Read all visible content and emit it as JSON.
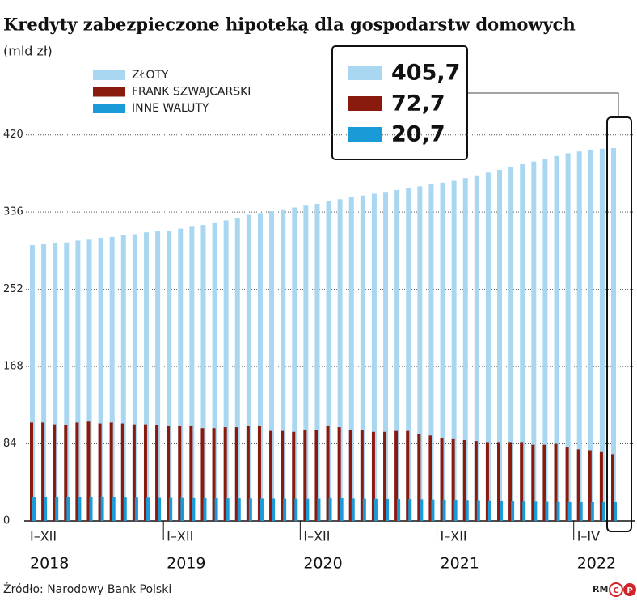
{
  "chart_data": {
    "type": "bar",
    "title": "Kredyty zabezpieczone hipoteką dla gospodarstw domowych",
    "subtitle": "(mld zł)",
    "categories": [
      null,
      null,
      null,
      null,
      null,
      null,
      null,
      null,
      null,
      null,
      null,
      null,
      null,
      null,
      null,
      null,
      null,
      null,
      null,
      null,
      null,
      null,
      null,
      null,
      null,
      null,
      null,
      null,
      null,
      null,
      null,
      null,
      null,
      null,
      null,
      null,
      null,
      null,
      null,
      null,
      null,
      null,
      null,
      null,
      null,
      null,
      null,
      null,
      null,
      null,
      null,
      null
    ],
    "x_groups": [
      {
        "label": "I–XII",
        "year": "2018"
      },
      {
        "label": "I–XII",
        "year": "2019"
      },
      {
        "label": "I–XII",
        "year": "2020"
      },
      {
        "label": "I–XII",
        "year": "2021"
      },
      {
        "label": "I–IV",
        "year": "2022"
      }
    ],
    "series": [
      {
        "name": "ZŁOTY",
        "color": "#a9d7f1",
        "values": [
          300,
          301,
          302,
          303,
          305,
          306,
          308,
          309,
          311,
          312,
          314,
          315,
          316,
          318,
          320,
          322,
          324,
          327,
          330,
          333,
          335,
          337,
          339,
          341,
          343,
          345,
          348,
          350,
          352,
          354,
          356,
          358,
          360,
          362,
          364,
          366,
          368,
          370,
          373,
          376,
          379,
          382,
          385,
          388,
          391,
          394,
          397,
          400,
          402,
          404,
          405,
          405.7
        ]
      },
      {
        "name": "FRANK SZWAJCARSKI",
        "color": "#8b1a0e",
        "values": [
          107,
          107,
          105,
          104,
          107,
          108,
          106,
          107,
          106,
          105,
          105,
          104,
          103,
          103,
          103,
          101,
          101,
          102,
          102,
          103,
          103,
          98,
          98,
          97,
          99,
          99,
          103,
          102,
          99,
          99,
          97,
          97,
          98,
          98,
          95,
          93,
          90,
          89,
          88,
          87,
          85,
          85,
          85,
          85,
          83,
          83,
          84,
          80,
          78,
          77,
          75,
          72.7
        ]
      },
      {
        "name": "INNE WALUTY",
        "color": "#1a9bd7",
        "values": [
          25.5,
          25.6,
          25.7,
          25.8,
          25.9,
          25.8,
          25.6,
          25.5,
          25.4,
          25.3,
          25.2,
          25.1,
          25.0,
          24.9,
          24.8,
          24.7,
          24.6,
          24.5,
          24.5,
          24.4,
          24.3,
          24.2,
          24.1,
          24.0,
          24.0,
          24.2,
          24.8,
          24.6,
          24.3,
          24.1,
          23.9,
          23.8,
          23.7,
          23.6,
          23.4,
          23.2,
          23.0,
          22.8,
          22.6,
          22.4,
          22.2,
          22.0,
          21.9,
          21.8,
          21.7,
          21.5,
          21.3,
          21.1,
          21.0,
          20.9,
          20.8,
          20.7
        ]
      }
    ],
    "callout_labels": [
      "405,7",
      "72,7",
      "20,7"
    ],
    "ylim": [
      0,
      440
    ],
    "yticks": [
      0,
      84,
      168,
      252,
      336,
      420
    ],
    "grid": true,
    "source": "Źródło: Narodowy Bank Polski",
    "logo": [
      "RM",
      "C",
      "P"
    ]
  }
}
